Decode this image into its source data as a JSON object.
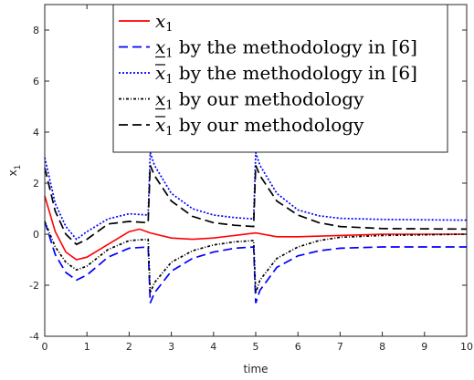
{
  "chart_data": {
    "type": "line",
    "xlabel": "time",
    "ylabel": "x",
    "ylabel_sub": "1",
    "xlim": [
      0,
      10
    ],
    "ylim": [
      -4,
      9
    ],
    "xticks": [
      0,
      1,
      2,
      3,
      4,
      5,
      6,
      7,
      8,
      9,
      10
    ],
    "xtick_labels": [
      "0",
      "1",
      "2",
      "3",
      "4",
      "5",
      "6",
      "7",
      "8",
      "9",
      "10"
    ],
    "yticks": [
      -4,
      -2,
      0,
      2,
      4,
      6,
      8
    ],
    "ytick_labels": [
      "-4",
      "-2",
      "0",
      "2",
      "4",
      "6",
      "8"
    ],
    "grid": false,
    "legend_position": "top-right",
    "series": [
      {
        "name": "x1",
        "legend_var": "x",
        "legend_sub": "1",
        "legend_text": "",
        "accent": "none",
        "color": "#ff0000",
        "style": "solid",
        "x": [
          0,
          0.25,
          0.5,
          0.75,
          1,
          1.5,
          2,
          2.25,
          2.5,
          3,
          3.5,
          4,
          4.5,
          5,
          5.5,
          6,
          7,
          8,
          10
        ],
        "y": [
          1.5,
          0.1,
          -0.7,
          -1.0,
          -0.9,
          -0.4,
          0.1,
          0.2,
          0.05,
          -0.15,
          -0.2,
          -0.15,
          -0.05,
          0.05,
          -0.1,
          -0.1,
          -0.05,
          0,
          0
        ]
      },
      {
        "name": "x1 lower by the methodology in [6]",
        "legend_var": "x",
        "legend_sub": "1",
        "legend_text": " by the methodology in [6]",
        "accent": "under",
        "color": "#0000ff",
        "style": "dashed",
        "x": [
          0,
          0.25,
          0.5,
          0.75,
          1,
          1.5,
          2,
          2.45,
          2.5,
          2.6,
          3,
          3.5,
          4,
          4.5,
          4.95,
          5,
          5.1,
          5.5,
          6,
          6.5,
          7,
          8,
          10
        ],
        "y": [
          0.5,
          -0.8,
          -1.5,
          -1.8,
          -1.6,
          -0.9,
          -0.55,
          -0.5,
          -2.7,
          -2.3,
          -1.45,
          -0.95,
          -0.7,
          -0.55,
          -0.5,
          -2.7,
          -2.2,
          -1.3,
          -0.85,
          -0.65,
          -0.55,
          -0.5,
          -0.5
        ]
      },
      {
        "name": "x1 upper by the methodology in [6]",
        "legend_var": "x",
        "legend_sub": "1",
        "legend_text": " by the methodology in [6]",
        "accent": "over",
        "color": "#0000ff",
        "style": "dotted",
        "x": [
          0,
          0.25,
          0.5,
          0.75,
          1,
          1.5,
          2,
          2.45,
          2.5,
          2.6,
          3,
          3.5,
          4,
          4.5,
          4.95,
          5,
          5.1,
          5.5,
          6,
          6.5,
          7,
          8,
          10
        ],
        "y": [
          3.0,
          1.2,
          0.3,
          -0.2,
          0.1,
          0.6,
          0.8,
          0.75,
          3.2,
          2.7,
          1.6,
          1.0,
          0.75,
          0.65,
          0.6,
          3.2,
          2.7,
          1.6,
          0.95,
          0.72,
          0.62,
          0.58,
          0.55
        ]
      },
      {
        "name": "x1 lower by our methodology",
        "legend_var": "x",
        "legend_sub": "1",
        "legend_text": " by our methodology",
        "accent": "under",
        "color": "#000000",
        "style": "dashdot",
        "x": [
          0,
          0.25,
          0.5,
          0.75,
          1,
          1.5,
          2,
          2.45,
          2.5,
          2.6,
          3,
          3.5,
          4,
          4.5,
          4.95,
          5,
          5.1,
          5.5,
          6,
          6.5,
          7,
          8,
          10
        ],
        "y": [
          0.5,
          -0.5,
          -1.1,
          -1.4,
          -1.25,
          -0.6,
          -0.25,
          -0.2,
          -2.3,
          -1.9,
          -1.1,
          -0.65,
          -0.42,
          -0.3,
          -0.25,
          -2.3,
          -1.8,
          -0.95,
          -0.5,
          -0.25,
          -0.12,
          -0.05,
          0
        ]
      },
      {
        "name": "x1 upper by our methodology",
        "legend_var": "x",
        "legend_sub": "1",
        "legend_text": " by our methodology",
        "accent": "over",
        "color": "#000000",
        "style": "dashed",
        "x": [
          0,
          0.25,
          0.5,
          0.75,
          1,
          1.5,
          2,
          2.45,
          2.5,
          2.6,
          3,
          3.5,
          4,
          4.5,
          4.95,
          5,
          5.1,
          5.5,
          6,
          6.5,
          7,
          8,
          10
        ],
        "y": [
          2.6,
          0.9,
          0.0,
          -0.4,
          -0.2,
          0.4,
          0.5,
          0.45,
          2.7,
          2.3,
          1.3,
          0.7,
          0.45,
          0.35,
          0.3,
          2.7,
          2.3,
          1.3,
          0.75,
          0.45,
          0.3,
          0.22,
          0.2
        ]
      }
    ]
  }
}
